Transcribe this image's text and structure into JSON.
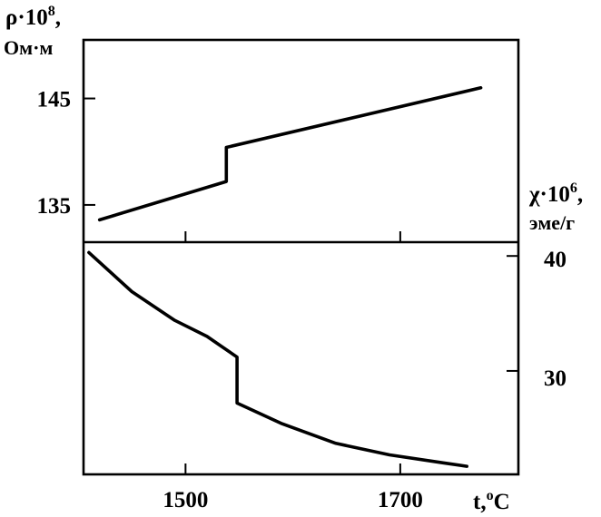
{
  "chart_data": [
    {
      "type": "line",
      "name": "resistivity-panel",
      "ylabel": "ρ·10",
      "ylabel_sup": "8",
      "ylabel_suffix": ",",
      "yunit": "Ом·м",
      "yticks": [
        135,
        145
      ],
      "ylim": [
        131.5,
        150.5
      ],
      "xlim": [
        1405,
        1810
      ],
      "series": [
        {
          "x": [
            1420,
            1538,
            1538,
            1775
          ],
          "y": [
            133.6,
            137.2,
            140.4,
            146.0
          ]
        }
      ]
    },
    {
      "type": "line",
      "name": "susceptibility-panel",
      "ylabel": "χ·10",
      "ylabel_sup": "6",
      "ylabel_suffix": ",",
      "yunit": "эме/г",
      "yticks": [
        30,
        40
      ],
      "ylim": [
        21,
        41.2
      ],
      "xlim": [
        1405,
        1810
      ],
      "xticks": [
        1500,
        1700
      ],
      "xlabel": "t,",
      "xlabel_sup": "o",
      "xlabel_suffix": "C",
      "series": [
        {
          "x": [
            1410,
            1450,
            1490,
            1520,
            1548,
            1548,
            1590,
            1640,
            1690,
            1740,
            1762
          ],
          "y": [
            40.3,
            36.9,
            34.4,
            33.0,
            31.2,
            27.2,
            25.4,
            23.7,
            22.7,
            22.0,
            21.7
          ]
        }
      ]
    }
  ]
}
